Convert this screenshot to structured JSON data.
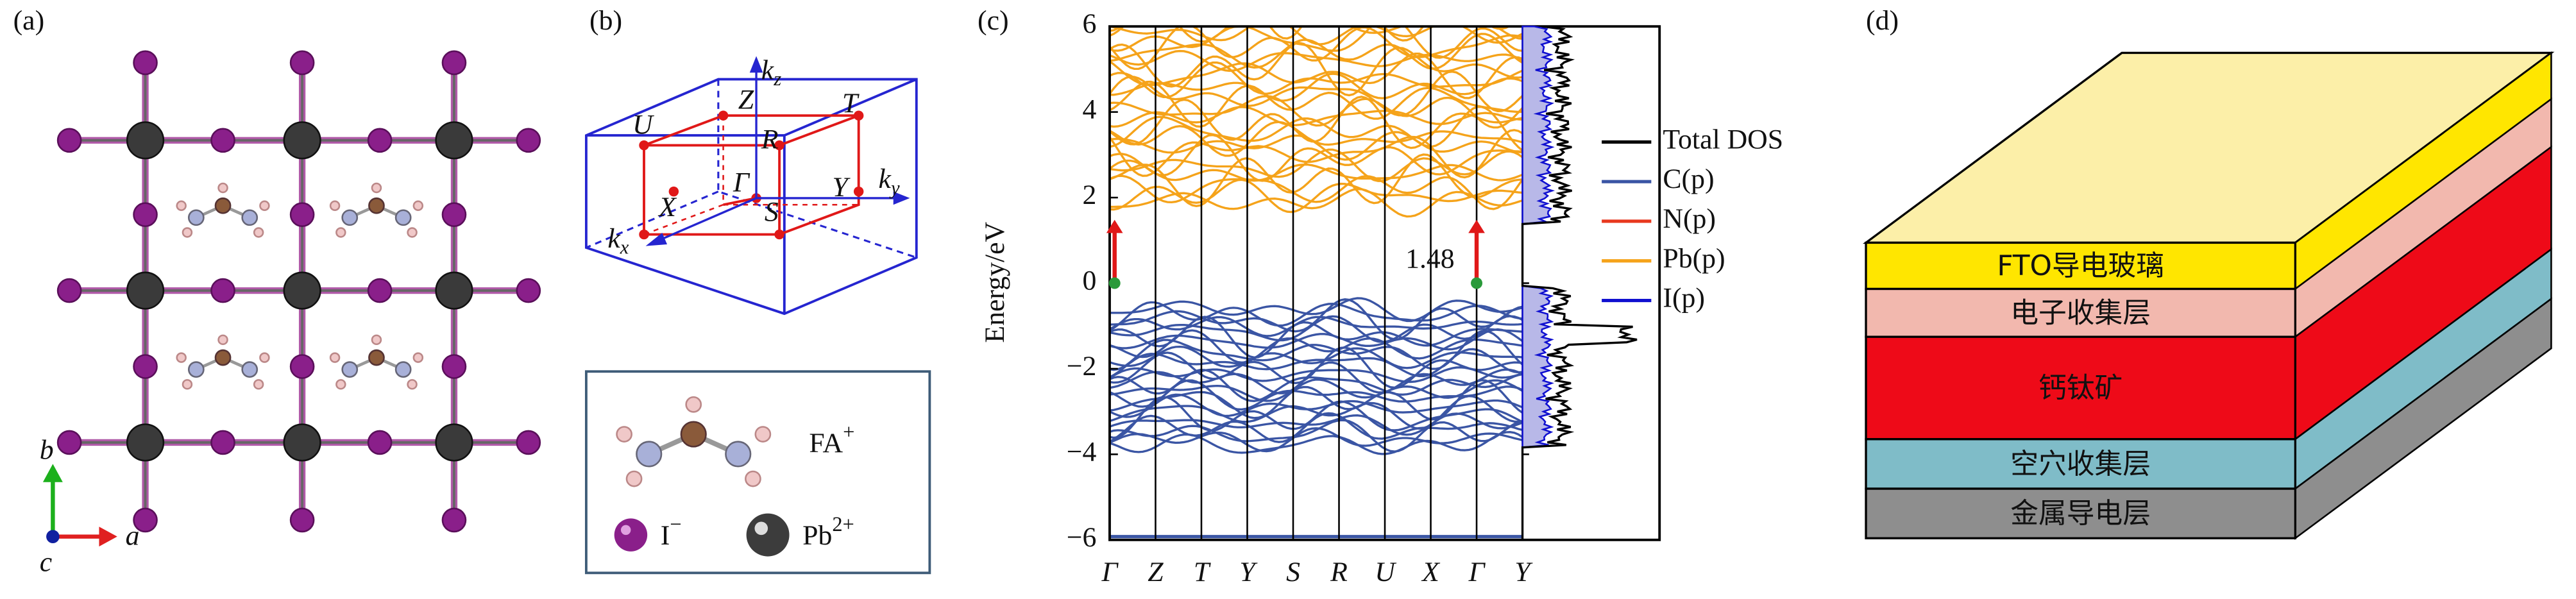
{
  "panel_labels": [
    "(a)",
    "(b)",
    "(c)",
    "(d)"
  ],
  "crystal_axes": [
    "a",
    "b",
    "c"
  ],
  "brillouin": {
    "points": [
      "U",
      "Z",
      "T",
      "R",
      "X",
      "Γ",
      "Y",
      "S"
    ],
    "axes": [
      {
        "main": "k",
        "sub": "z"
      },
      {
        "main": "k",
        "sub": "y"
      },
      {
        "main": "k",
        "sub": "x"
      }
    ]
  },
  "species_legend": [
    {
      "name": "FA",
      "charge": "+"
    },
    {
      "name": "I",
      "charge": "−"
    },
    {
      "name": "Pb",
      "charge": "2+"
    }
  ],
  "band_structure": {
    "ylabel": "Energy/eV",
    "ylim": [
      -6,
      6
    ],
    "yticks": [
      6,
      4,
      2,
      0,
      {
        "value": -2,
        "label": "−2"
      },
      {
        "value": -4,
        "label": "−4"
      },
      {
        "value": -6,
        "label": "−6"
      }
    ],
    "kpoints": [
      "Γ",
      "Z",
      "T",
      "Y",
      "S",
      "R",
      "U",
      "X",
      "Γ",
      "Y"
    ],
    "gap": 1.48,
    "dos_legend": [
      {
        "name": "Total DOS",
        "color": "#000000"
      },
      {
        "name": "C(p)",
        "color": "#3a55a4"
      },
      {
        "name": "N(p)",
        "color": "#e8381e"
      },
      {
        "name": "Pb(p)",
        "color": "#f5a31a"
      },
      {
        "name": "I(p)",
        "color": "#1010d0"
      }
    ]
  },
  "device_layers": [
    {
      "name": "FTO导电玻璃",
      "color": "#ffe600"
    },
    {
      "name": "电子收集层",
      "color": "#f2b8ae"
    },
    {
      "name": "钙钛矿",
      "color": "#ee0a18"
    },
    {
      "name": "空穴收集层",
      "color": "#7fbcc8"
    },
    {
      "name": "金属导电层",
      "color": "#8e8e8e"
    }
  ]
}
